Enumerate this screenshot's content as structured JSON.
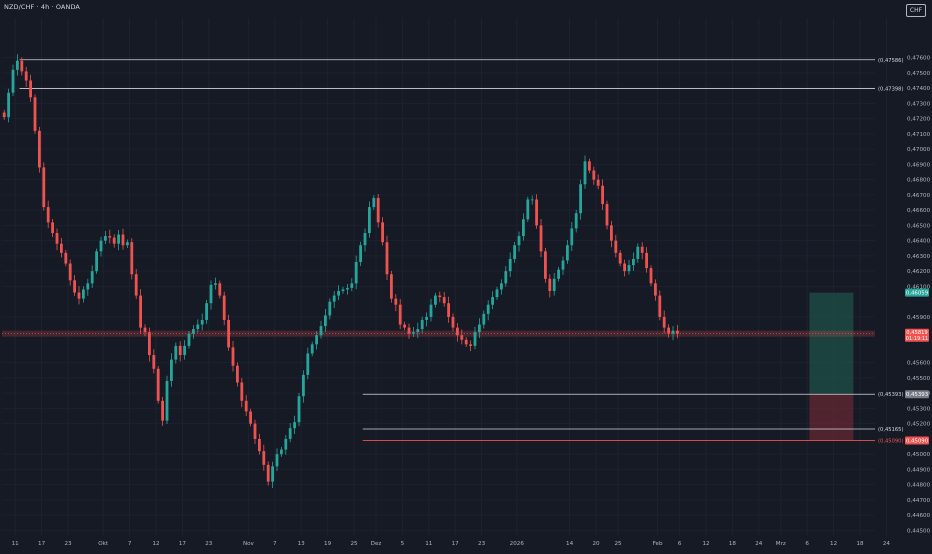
{
  "header": {
    "title": "NZD/CHF · 4h · OANDA",
    "currency": "CHF"
  },
  "colors": {
    "background": "#161a25",
    "grid": "#1e2230",
    "text": "#b2b5be",
    "up": "#26a69a",
    "down": "#ef5350",
    "price_line": "#ef5350",
    "level_line": "#d1d4dc",
    "target_zone": "#1d4a44",
    "stop_zone": "#5a2730"
  },
  "chart_data": {
    "type": "line",
    "title": "NZD/CHF · 4h · OANDA",
    "xlabel": "",
    "ylabel": "",
    "ylim": [
      0.4447,
      0.4786
    ],
    "grid": true,
    "x_ticks": [
      {
        "label": "11",
        "pos": 3
      },
      {
        "label": "17",
        "pos": 9
      },
      {
        "label": "23",
        "pos": 15
      },
      {
        "label": "Okt",
        "pos": 23
      },
      {
        "label": "7",
        "pos": 29
      },
      {
        "label": "12",
        "pos": 35
      },
      {
        "label": "17",
        "pos": 41
      },
      {
        "label": "23",
        "pos": 47
      },
      {
        "label": "Nov",
        "pos": 56
      },
      {
        "label": "7",
        "pos": 62
      },
      {
        "label": "13",
        "pos": 68
      },
      {
        "label": "19",
        "pos": 74
      },
      {
        "label": "25",
        "pos": 80
      },
      {
        "label": "Dez",
        "pos": 85
      },
      {
        "label": "5",
        "pos": 91
      },
      {
        "label": "11",
        "pos": 97
      },
      {
        "label": "17",
        "pos": 103
      },
      {
        "label": "23",
        "pos": 109
      },
      {
        "label": "2026",
        "pos": 117
      },
      {
        "label": "14",
        "pos": 129
      },
      {
        "label": "20",
        "pos": 135
      },
      {
        "label": "25",
        "pos": 140
      },
      {
        "label": "Feb",
        "pos": 149
      },
      {
        "label": "6",
        "pos": 154
      },
      {
        "label": "12",
        "pos": 160
      },
      {
        "label": "18",
        "pos": 166
      },
      {
        "label": "24",
        "pos": 172
      },
      {
        "label": "Mrz",
        "pos": 177
      },
      {
        "label": "6",
        "pos": 183
      },
      {
        "label": "12",
        "pos": 189
      },
      {
        "label": "18",
        "pos": 195
      },
      {
        "label": "24",
        "pos": 201
      }
    ],
    "y_ticks": [
      "0,47600",
      "0,47500",
      "0,47400",
      "0,47300",
      "0,47200",
      "0,47100",
      "0,47000",
      "0,46900",
      "0,46800",
      "0,46700",
      "0,46600",
      "0,46500",
      "0,46400",
      "0,46300",
      "0,46200",
      "0,46100",
      "0,45900",
      "0,45600",
      "0,45500",
      "0,45400",
      "0,45300",
      "0,45200",
      "0,45000",
      "0,44900",
      "0,44800",
      "0,44700",
      "0,44600",
      "0,44500"
    ],
    "series": [
      {
        "values": [
          0.4721,
          0.4737,
          0.4752,
          0.4758,
          0.4751,
          0.4745,
          0.4734,
          0.4712,
          0.4688,
          0.4662,
          0.4652,
          0.4645,
          0.4638,
          0.4632,
          0.4625,
          0.4614,
          0.4606,
          0.4602,
          0.4608,
          0.4612,
          0.462,
          0.4633,
          0.464,
          0.4643,
          0.4642,
          0.4638,
          0.4644,
          0.4637,
          0.4639,
          0.4618,
          0.4604,
          0.4583,
          0.458,
          0.4565,
          0.4556,
          0.4535,
          0.4522,
          0.4548,
          0.4562,
          0.4571,
          0.4565,
          0.4571,
          0.4579,
          0.4582,
          0.4585,
          0.4588,
          0.4599,
          0.4611,
          0.4612,
          0.4604,
          0.4588,
          0.457,
          0.4558,
          0.4547,
          0.4535,
          0.4528,
          0.452,
          0.451,
          0.4502,
          0.4493,
          0.4482,
          0.4492,
          0.45,
          0.4503,
          0.451,
          0.4517,
          0.4521,
          0.4538,
          0.4552,
          0.4566,
          0.4572,
          0.4578,
          0.4584,
          0.4591,
          0.46,
          0.4604,
          0.4607,
          0.4608,
          0.4609,
          0.4612,
          0.4626,
          0.4637,
          0.4645,
          0.4662,
          0.4668,
          0.4652,
          0.4639,
          0.4618,
          0.4602,
          0.4598,
          0.4585,
          0.4583,
          0.4579,
          0.458,
          0.4582,
          0.4588,
          0.459,
          0.4598,
          0.4604,
          0.4603,
          0.4599,
          0.459,
          0.4583,
          0.4578,
          0.4575,
          0.4572,
          0.4571,
          0.458,
          0.4585,
          0.4592,
          0.4598,
          0.4603,
          0.4608,
          0.4612,
          0.462,
          0.4628,
          0.4637,
          0.4643,
          0.4654,
          0.4667,
          0.4667,
          0.465,
          0.4633,
          0.4615,
          0.4607,
          0.4615,
          0.4621,
          0.4627,
          0.4637,
          0.4648,
          0.4658,
          0.4677,
          0.4692,
          0.4686,
          0.468,
          0.4676,
          0.4664,
          0.465,
          0.464,
          0.4632,
          0.4625,
          0.462,
          0.4624,
          0.4628,
          0.4636,
          0.4632,
          0.4622,
          0.4612,
          0.4604,
          0.459,
          0.4583,
          0.4579,
          0.4581,
          0.4579
        ]
      }
    ],
    "current_price": "0,45819",
    "countdown": "01:19:11",
    "levels": [
      {
        "value": 0.47586,
        "label": "(0,47586)",
        "color": "#d1d4dc"
      },
      {
        "value": 0.47398,
        "label": "(0,47398)",
        "color": "#d1d4dc"
      },
      {
        "value": 0.45393,
        "label": "(0,45393)",
        "color": "#d1d4dc"
      },
      {
        "value": 0.45165,
        "label": "(0,45165)",
        "color": "#d1d4dc"
      },
      {
        "value": 0.4509,
        "label": "(0,45090)",
        "color": "#ef5350"
      }
    ],
    "axis_badges": [
      {
        "label": "0,46059",
        "color": "#26a69a"
      },
      {
        "label": "0,45393",
        "color": "#787b86"
      },
      {
        "label": "0,45090",
        "color": "#ef5350"
      }
    ],
    "position": {
      "entry": 0.45393,
      "target": 0.46059,
      "stop": 0.4509
    }
  }
}
